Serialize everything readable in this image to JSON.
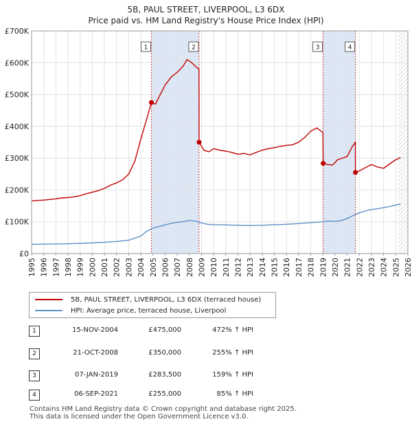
{
  "title_line1": "5B, PAUL STREET, LIVERPOOL, L3 6DX",
  "title_line2": "Price paid vs. HM Land Registry's House Price Index (HPI)",
  "colors": {
    "price": "#c00000",
    "hpi": "#5b8fc9",
    "shade": "#dde6f5",
    "marker": "#c00000"
  },
  "chart_data": {
    "type": "line",
    "xlim": [
      1995,
      2026
    ],
    "ylim": [
      0,
      700000
    ],
    "y_ticks": [
      {
        "value": 0,
        "label": "£0"
      },
      {
        "value": 100000,
        "label": "£100K"
      },
      {
        "value": 200000,
        "label": "£200K"
      },
      {
        "value": 300000,
        "label": "£300K"
      },
      {
        "value": 400000,
        "label": "£400K"
      },
      {
        "value": 500000,
        "label": "£500K"
      },
      {
        "value": 600000,
        "label": "£600K"
      },
      {
        "value": 700000,
        "label": "£700K"
      }
    ],
    "x_ticks": [
      "1995",
      "1996",
      "1997",
      "1998",
      "1999",
      "2000",
      "2001",
      "2002",
      "2003",
      "2004",
      "2005",
      "2006",
      "2007",
      "2008",
      "2009",
      "2010",
      "2011",
      "2012",
      "2013",
      "2014",
      "2015",
      "2016",
      "2017",
      "2018",
      "2019",
      "2020",
      "2021",
      "2022",
      "2023",
      "2024",
      "2025",
      "2026"
    ],
    "shaded_ranges": [
      [
        2004.87,
        2008.8
      ],
      [
        2019.02,
        2021.68
      ]
    ],
    "hatched_from": 2025.2,
    "series": [
      {
        "name": "5B, PAUL STREET, LIVERPOOL, L3 6DX (terraced house)",
        "x": [
          1995.0,
          1995.5,
          1996.0,
          1996.5,
          1997.0,
          1997.5,
          1998.0,
          1998.5,
          1999.0,
          1999.5,
          2000.0,
          2000.5,
          2001.0,
          2001.5,
          2002.0,
          2002.5,
          2003.0,
          2003.5,
          2004.0,
          2004.5,
          2004.87,
          2005.2,
          2005.6,
          2006.0,
          2006.5,
          2007.0,
          2007.5,
          2007.8,
          2008.2,
          2008.6,
          2008.79,
          2008.8,
          2009.2,
          2009.6,
          2010.0,
          2010.5,
          2011.0,
          2011.5,
          2012.0,
          2012.5,
          2013.0,
          2013.5,
          2014.0,
          2014.5,
          2015.0,
          2015.5,
          2016.0,
          2016.5,
          2017.0,
          2017.5,
          2018.0,
          2018.5,
          2019.0,
          2019.02,
          2019.4,
          2019.8,
          2020.2,
          2020.6,
          2021.0,
          2021.4,
          2021.67,
          2021.68,
          2022.0,
          2022.5,
          2023.0,
          2023.5,
          2024.0,
          2024.5,
          2025.0,
          2025.4
        ],
        "values": [
          165000,
          167000,
          168000,
          170000,
          172000,
          175000,
          176000,
          178000,
          182000,
          188000,
          193000,
          198000,
          205000,
          215000,
          222000,
          232000,
          250000,
          290000,
          360000,
          425000,
          475000,
          470000,
          500000,
          530000,
          555000,
          570000,
          590000,
          610000,
          600000,
          585000,
          580000,
          350000,
          325000,
          320000,
          330000,
          325000,
          322000,
          318000,
          312000,
          315000,
          310000,
          318000,
          325000,
          330000,
          333000,
          337000,
          340000,
          342000,
          350000,
          365000,
          385000,
          395000,
          380000,
          283500,
          280000,
          278000,
          295000,
          300000,
          305000,
          335000,
          350000,
          255000,
          260000,
          270000,
          280000,
          272000,
          268000,
          282000,
          295000,
          302000
        ]
      },
      {
        "name": "HPI: Average price, terraced house, Liverpool",
        "x": [
          1995.0,
          1996.0,
          1997.0,
          1998.0,
          1999.0,
          2000.0,
          2001.0,
          2002.0,
          2003.0,
          2004.0,
          2004.5,
          2005.0,
          2005.5,
          2006.0,
          2006.5,
          2007.0,
          2007.5,
          2008.0,
          2008.5,
          2009.0,
          2009.5,
          2010.0,
          2011.0,
          2012.0,
          2013.0,
          2014.0,
          2015.0,
          2016.0,
          2017.0,
          2018.0,
          2019.0,
          2019.5,
          2020.0,
          2020.5,
          2021.0,
          2021.5,
          2022.0,
          2022.5,
          2023.0,
          2023.5,
          2024.0,
          2024.5,
          2025.0,
          2025.4
        ],
        "values": [
          29000,
          29500,
          30000,
          31000,
          32000,
          33500,
          35500,
          38000,
          42000,
          55000,
          70000,
          80000,
          85000,
          90000,
          95000,
          98000,
          100000,
          104000,
          102000,
          96000,
          92000,
          91000,
          90000,
          89000,
          88000,
          89000,
          90500,
          92000,
          94500,
          97000,
          100000,
          102000,
          101000,
          103500,
          110000,
          120000,
          128000,
          134000,
          138000,
          141000,
          144000,
          148000,
          152000,
          156000
        ]
      }
    ],
    "sales": [
      {
        "id": "1",
        "x": 2004.87,
        "value": 475000
      },
      {
        "id": "2",
        "x": 2008.8,
        "value": 350000
      },
      {
        "id": "3",
        "x": 2019.02,
        "value": 283500
      },
      {
        "id": "4",
        "x": 2021.68,
        "value": 255000
      }
    ]
  },
  "legend": {
    "price_label": "5B, PAUL STREET, LIVERPOOL, L3 6DX (terraced house)",
    "hpi_label": "HPI: Average price, terraced house, Liverpool"
  },
  "sales_table": [
    {
      "id": "1",
      "date": "15-NOV-2004",
      "price": "£475,000",
      "hpi": "472% ↑ HPI"
    },
    {
      "id": "2",
      "date": "21-OCT-2008",
      "price": "£350,000",
      "hpi": "255% ↑ HPI"
    },
    {
      "id": "3",
      "date": "07-JAN-2019",
      "price": "£283,500",
      "hpi": "159% ↑ HPI"
    },
    {
      "id": "4",
      "date": "06-SEP-2021",
      "price": "£255,000",
      "hpi": "85% ↑ HPI"
    }
  ],
  "footer_line1": "Contains HM Land Registry data © Crown copyright and database right 2025.",
  "footer_line2": "This data is licensed under the Open Government Licence v3.0."
}
